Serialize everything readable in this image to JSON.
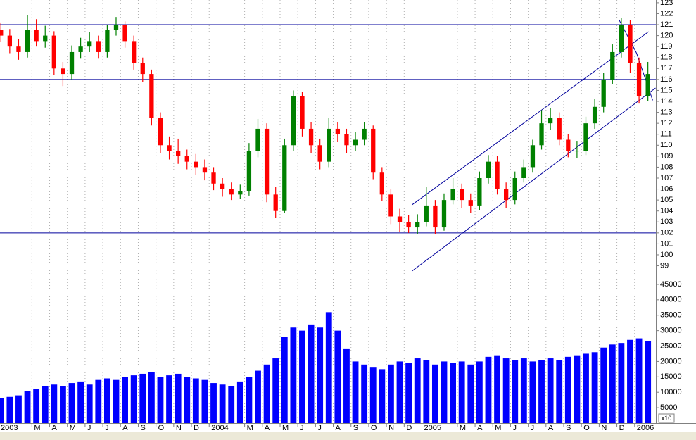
{
  "chart_data": {
    "type": "candlestick",
    "x": [
      0.25,
      0.75,
      1.25,
      1.75,
      2.25,
      2.75,
      3.25,
      3.75,
      4.25,
      4.75,
      5.25,
      5.75,
      6.25,
      6.75,
      7.25,
      7.75,
      8.25,
      8.75,
      9.25,
      9.75,
      10.25,
      10.75,
      11.25,
      11.75,
      12.25,
      12.75,
      13.25,
      13.75,
      14.25,
      14.75,
      15.25,
      15.75,
      16.25,
      16.75,
      17.25,
      17.75,
      18.25,
      18.75,
      19.25,
      19.75,
      20.25,
      20.75,
      21.25,
      21.75,
      22.25,
      22.75,
      23.25,
      23.75,
      24.25,
      24.75,
      25.25,
      25.75,
      26.25,
      26.75,
      27.25,
      27.75,
      28.25,
      28.75,
      29.25,
      29.75,
      30.25,
      30.75,
      31.25,
      31.75,
      32.25,
      32.75,
      33.25,
      33.75,
      34.25,
      34.75,
      35.25,
      35.75,
      36.25,
      36.75
    ],
    "open": [
      120.5,
      120.0,
      119.0,
      118.5,
      120.5,
      119.5,
      120.0,
      117.0,
      116.5,
      118.5,
      119.0,
      119.5,
      118.5,
      120.5,
      121.0,
      119.5,
      117.5,
      116.5,
      112.5,
      110.0,
      109.5,
      109.0,
      108.5,
      108.0,
      107.5,
      106.5,
      106.0,
      105.5,
      105.8,
      109.5,
      111.5,
      105.5,
      104.0,
      110.0,
      114.5,
      111.5,
      110.0,
      108.5,
      111.5,
      111.0,
      110.0,
      110.5,
      111.5,
      107.5,
      105.5,
      103.5,
      103.0,
      102.5,
      103.0,
      104.5,
      102.5,
      105.0,
      106.0,
      105.0,
      104.5,
      107.0,
      108.5,
      106.0,
      105.0,
      107.0,
      108.0,
      110.0,
      112.0,
      112.5,
      110.5,
      109.5,
      109.5,
      112.0,
      113.5,
      116.0,
      118.5,
      121.0,
      117.5,
      114.5
    ],
    "high": [
      121.2,
      120.6,
      119.7,
      121.9,
      121.5,
      120.9,
      120.4,
      117.6,
      119.1,
      119.8,
      120.3,
      120.0,
      121.0,
      121.7,
      121.3,
      120.0,
      118.0,
      116.9,
      113.0,
      110.8,
      110.6,
      109.6,
      109.2,
      108.7,
      108.0,
      107.0,
      106.6,
      106.4,
      110.2,
      112.4,
      112.0,
      106.2,
      110.6,
      115.0,
      114.9,
      112.1,
      110.6,
      112.5,
      112.1,
      111.5,
      111.2,
      112.1,
      111.8,
      108.0,
      106.0,
      104.2,
      103.6,
      103.7,
      106.2,
      105.0,
      105.6,
      107.0,
      106.5,
      105.6,
      107.6,
      109.1,
      109.0,
      106.6,
      107.6,
      108.7,
      110.5,
      113.2,
      113.4,
      113.0,
      111.0,
      110.4,
      112.6,
      114.2,
      116.6,
      119.2,
      121.6,
      121.4,
      118.0,
      117.6
    ],
    "low": [
      119.4,
      118.4,
      117.8,
      118.0,
      119.0,
      118.9,
      116.4,
      115.4,
      116.0,
      117.9,
      118.5,
      117.9,
      118.0,
      120.0,
      118.9,
      116.9,
      115.8,
      111.8,
      109.3,
      108.7,
      108.3,
      107.8,
      107.3,
      106.8,
      105.9,
      105.3,
      105.0,
      105.1,
      105.4,
      108.9,
      104.8,
      103.4,
      103.8,
      109.5,
      110.8,
      109.3,
      107.8,
      108.0,
      110.3,
      109.3,
      109.5,
      110.0,
      106.9,
      104.9,
      102.8,
      102.1,
      102.0,
      101.9,
      102.6,
      101.9,
      102.2,
      104.6,
      104.3,
      103.8,
      104.1,
      106.5,
      105.5,
      104.3,
      104.6,
      106.6,
      107.5,
      109.6,
      111.4,
      110.0,
      108.9,
      108.8,
      109.1,
      111.5,
      113.0,
      115.6,
      118.0,
      116.6,
      113.8,
      114.0
    ],
    "close": [
      120.0,
      119.0,
      118.5,
      120.5,
      119.5,
      120.0,
      117.0,
      116.5,
      118.5,
      119.0,
      119.5,
      118.5,
      120.5,
      121.0,
      119.5,
      117.5,
      116.5,
      112.5,
      110.0,
      109.5,
      109.0,
      108.5,
      108.0,
      107.5,
      106.5,
      106.0,
      105.5,
      105.8,
      109.5,
      111.5,
      105.5,
      104.0,
      110.0,
      114.5,
      111.5,
      110.0,
      108.5,
      111.5,
      111.0,
      110.0,
      110.5,
      111.5,
      107.5,
      105.5,
      103.5,
      103.0,
      102.5,
      103.0,
      104.5,
      102.5,
      105.0,
      106.0,
      105.0,
      104.5,
      107.0,
      108.5,
      106.0,
      105.0,
      107.0,
      108.0,
      110.0,
      112.0,
      112.5,
      110.5,
      109.5,
      109.5,
      112.0,
      113.5,
      116.0,
      118.5,
      121.0,
      117.5,
      114.5,
      116.5
    ],
    "volume": [
      8000,
      8500,
      9000,
      10500,
      11000,
      12000,
      12500,
      12000,
      13000,
      13500,
      12500,
      14000,
      14500,
      14000,
      15000,
      15500,
      16000,
      16500,
      15000,
      15500,
      16000,
      15000,
      14500,
      14000,
      13000,
      12500,
      12000,
      13500,
      15000,
      17000,
      19000,
      21000,
      28000,
      31000,
      30000,
      32000,
      31000,
      36000,
      30000,
      24000,
      20000,
      19000,
      18000,
      17500,
      19000,
      20000,
      19500,
      21000,
      20500,
      19000,
      20000,
      19500,
      20000,
      19000,
      20000,
      21500,
      22000,
      21000,
      20500,
      21000,
      20000,
      20500,
      21000,
      20500,
      21500,
      22000,
      22500,
      23000,
      24500,
      25500,
      26000,
      27000,
      27500,
      26500
    ],
    "up_color": "#008000",
    "down_color": "#ff0000",
    "volume_color": "#0000ff",
    "line_color": "#00009c",
    "xlim": [
      0.2,
      37.2
    ],
    "xticks": [
      {
        "value": 0,
        "label": "2003"
      },
      {
        "value": 2,
        "label": "M"
      },
      {
        "value": 3,
        "label": "A"
      },
      {
        "value": 4,
        "label": "M"
      },
      {
        "value": 5,
        "label": "J"
      },
      {
        "value": 6,
        "label": "J"
      },
      {
        "value": 7,
        "label": "A"
      },
      {
        "value": 8,
        "label": "S"
      },
      {
        "value": 9,
        "label": "O"
      },
      {
        "value": 10,
        "label": "N"
      },
      {
        "value": 11,
        "label": "D"
      },
      {
        "value": 12,
        "label": "2004"
      },
      {
        "value": 14,
        "label": "M"
      },
      {
        "value": 15,
        "label": "A"
      },
      {
        "value": 16,
        "label": "M"
      },
      {
        "value": 17,
        "label": "J"
      },
      {
        "value": 18,
        "label": "J"
      },
      {
        "value": 19,
        "label": "A"
      },
      {
        "value": 20,
        "label": "S"
      },
      {
        "value": 21,
        "label": "O"
      },
      {
        "value": 22,
        "label": "N"
      },
      {
        "value": 23,
        "label": "D"
      },
      {
        "value": 24,
        "label": "2005"
      },
      {
        "value": 26,
        "label": "M"
      },
      {
        "value": 27,
        "label": "A"
      },
      {
        "value": 28,
        "label": "M"
      },
      {
        "value": 29,
        "label": "J"
      },
      {
        "value": 30,
        "label": "J"
      },
      {
        "value": 31,
        "label": "A"
      },
      {
        "value": 32,
        "label": "S"
      },
      {
        "value": 33,
        "label": "O"
      },
      {
        "value": 34,
        "label": "N"
      },
      {
        "value": 35,
        "label": "D"
      },
      {
        "value": 36,
        "label": "2006"
      }
    ],
    "ylim": [
      98.2,
      123.25
    ],
    "yticks": [
      99,
      100,
      101,
      102,
      103,
      104,
      105,
      106,
      107,
      108,
      109,
      110,
      111,
      112,
      113,
      114,
      115,
      116,
      117,
      118,
      119,
      120,
      121,
      122,
      123
    ],
    "volume_ylim": [
      0,
      47500
    ],
    "volume_yticks": [
      5000,
      10000,
      15000,
      20000,
      25000,
      30000,
      35000,
      40000,
      45000
    ],
    "volume_unit_label": "x10",
    "hlines": [
      121,
      116,
      102
    ],
    "trendlines": [
      {
        "x": [
          23.45,
          37.18
        ],
        "y": [
          98.53,
          115.22
        ]
      },
      {
        "x": [
          23.45,
          36.79
        ],
        "y": [
          104.57,
          120.36
        ]
      },
      {
        "x": [
          35.12,
          36.11,
          37.02
        ],
        "y": [
          121.45,
          118.4,
          114.1
        ]
      }
    ],
    "grid": true
  }
}
